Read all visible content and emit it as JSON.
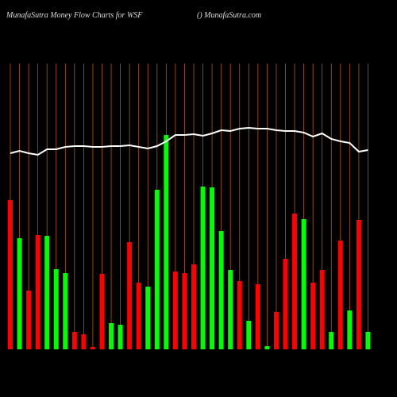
{
  "chart_data": {
    "type": "bar",
    "title": "MunafaSutra  Money Flow  Charts for WSF",
    "subtitle": "() MunafaSutra.com",
    "ylim": [
      0,
      360
    ],
    "grid": true,
    "grid_color": "#b35a00",
    "values": [
      188,
      140,
      74,
      144,
      143,
      101,
      96,
      22,
      19,
      3,
      95,
      33,
      31,
      135,
      84,
      79,
      201,
      270,
      98,
      96,
      107,
      205,
      204,
      149,
      100,
      86,
      36,
      82,
      4,
      47,
      114,
      171,
      164,
      84,
      100,
      22,
      137,
      49,
      163,
      22
    ],
    "colors": [
      "#ff0000",
      "#00ff00",
      "#ff0000",
      "#ff0000",
      "#00ff00",
      "#00ff00",
      "#00ff00",
      "#ff0000",
      "#ff0000",
      "#ff0000",
      "#ff0000",
      "#00ff00",
      "#00ff00",
      "#ff0000",
      "#ff0000",
      "#00ff00",
      "#00ff00",
      "#00ff00",
      "#ff0000",
      "#ff0000",
      "#ff0000",
      "#00ff00",
      "#00ff00",
      "#00ff00",
      "#00ff00",
      "#ff0000",
      "#00ff00",
      "#ff0000",
      "#00ff00",
      "#ff0000",
      "#ff0000",
      "#ff0000",
      "#00ff00",
      "#ff0000",
      "#ff0000",
      "#00ff00",
      "#ff0000",
      "#00ff00",
      "#ff0000",
      "#00ff00"
    ],
    "line": {
      "color": "#ffffff",
      "values": [
        247,
        250,
        247,
        245,
        252,
        252,
        255,
        256,
        256,
        255,
        255,
        256,
        256,
        257,
        255,
        253,
        256,
        262,
        270,
        270,
        271,
        269,
        272,
        276,
        275,
        278,
        279,
        278,
        278,
        276,
        275,
        275,
        273,
        268,
        272,
        265,
        262,
        260,
        249,
        251
      ]
    }
  }
}
